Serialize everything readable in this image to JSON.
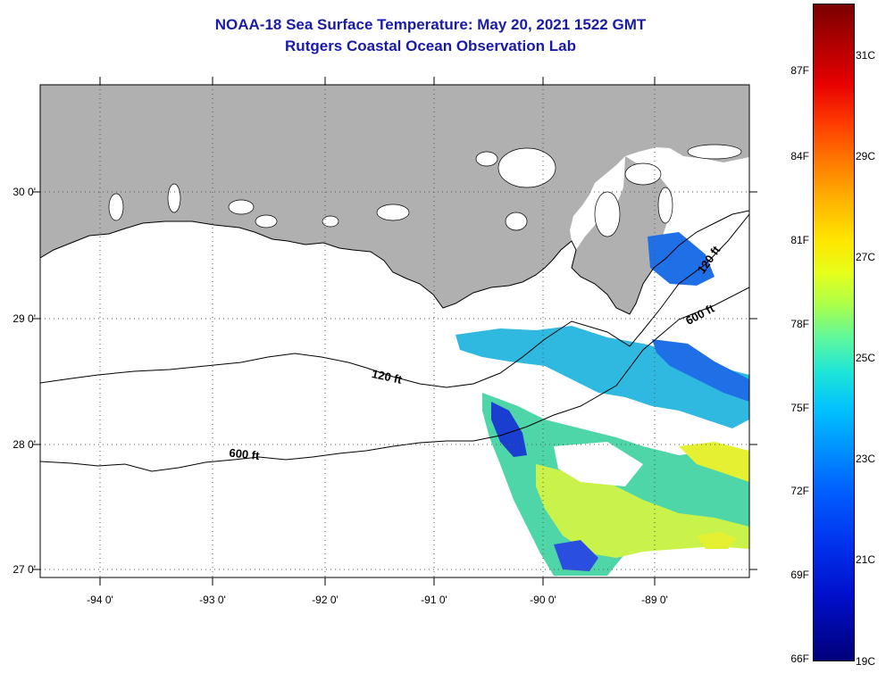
{
  "title": {
    "line1": "NOAA-18 Sea Surface Temperature:  May 20, 2021 1522 GMT",
    "line2": "Rutgers Coastal Ocean Observation Lab"
  },
  "axes": {
    "y_labels": [
      "30 0'",
      "29 0'",
      "28 0'",
      "27 0'"
    ],
    "x_labels": [
      "-94 0'",
      "-93 0'",
      "-92 0'",
      "-91 0'",
      "-90 0'",
      "-89 0'"
    ]
  },
  "contours": {
    "shallow": "120 ft",
    "deep": "600 ft"
  },
  "colorbar": {
    "fahrenheit": [
      "87F",
      "84F",
      "81F",
      "78F",
      "75F",
      "72F",
      "69F",
      "66F"
    ],
    "celsius": [
      "31C",
      "29C",
      "27C",
      "25C",
      "23C",
      "21C",
      "19C"
    ]
  },
  "colors": {
    "land": "#b0b0b0",
    "title": "#1a1aa8"
  }
}
